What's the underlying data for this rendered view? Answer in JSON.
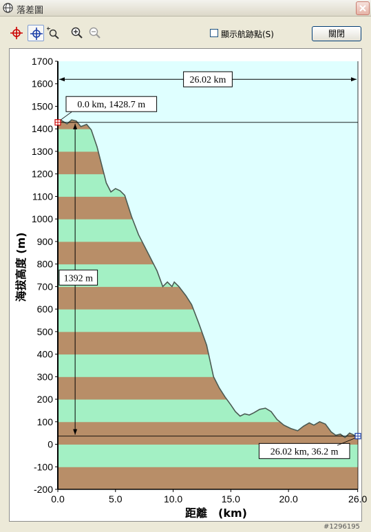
{
  "window": {
    "title": "落差圖",
    "close_icon": "close-icon",
    "app_icon": "globe-icon"
  },
  "toolbar": {
    "tools": [
      {
        "name": "crosshair-red",
        "icon": "crosshair-icon",
        "color": "#cc0000"
      },
      {
        "name": "pan",
        "icon": "move-crosshair-icon",
        "color": "#1c3fa8"
      },
      {
        "name": "zoom-box",
        "icon": "zoom-box-icon",
        "color": "#333333"
      },
      {
        "name": "zoom-in",
        "icon": "zoom-in-icon",
        "color": "#333333"
      },
      {
        "name": "zoom-out",
        "icon": "zoom-out-icon",
        "color": "#999999"
      }
    ],
    "waypoints_label": "顯示航跡點(S)",
    "waypoints_checked": false,
    "close_label": "關閉"
  },
  "chart_data": {
    "type": "area",
    "xlabel": "距離　(km)",
    "ylabel": "海拔高度 (m)",
    "xlim": [
      0,
      26.02
    ],
    "ylim": [
      -200,
      1700
    ],
    "x_ticks": [
      "0.0",
      "5.0",
      "10.0",
      "15.0",
      "20.0",
      "26.0"
    ],
    "x_tick_values": [
      0,
      5,
      10,
      15,
      20,
      26
    ],
    "y_ticks": [
      "1700",
      "1600",
      "1500",
      "1400",
      "1300",
      "1200",
      "1100",
      "1000",
      "900",
      "800",
      "700",
      "600",
      "500",
      "400",
      "300",
      "200",
      "100",
      "0",
      "-100",
      "-200"
    ],
    "y_tick_values": [
      1700,
      1600,
      1500,
      1400,
      1300,
      1200,
      1100,
      1000,
      900,
      800,
      700,
      600,
      500,
      400,
      300,
      200,
      100,
      0,
      -100,
      -200
    ],
    "band_colors": [
      "#b88e68",
      "#a3f0c4"
    ],
    "band_height": 100,
    "sky_color": "#dfffff",
    "line_color": "#4a5a52",
    "profile": [
      {
        "x": 0.0,
        "y": 1428.7
      },
      {
        "x": 0.3,
        "y": 1438
      },
      {
        "x": 0.8,
        "y": 1422
      },
      {
        "x": 1.2,
        "y": 1440
      },
      {
        "x": 1.6,
        "y": 1435
      },
      {
        "x": 2.0,
        "y": 1410
      },
      {
        "x": 2.5,
        "y": 1420
      },
      {
        "x": 2.9,
        "y": 1395
      },
      {
        "x": 3.4,
        "y": 1320
      },
      {
        "x": 3.8,
        "y": 1240
      },
      {
        "x": 4.2,
        "y": 1160
      },
      {
        "x": 4.6,
        "y": 1120
      },
      {
        "x": 5.0,
        "y": 1135
      },
      {
        "x": 5.4,
        "y": 1125
      },
      {
        "x": 5.8,
        "y": 1105
      },
      {
        "x": 6.4,
        "y": 1010
      },
      {
        "x": 7.0,
        "y": 930
      },
      {
        "x": 7.5,
        "y": 880
      },
      {
        "x": 8.0,
        "y": 830
      },
      {
        "x": 8.6,
        "y": 770
      },
      {
        "x": 9.1,
        "y": 700
      },
      {
        "x": 9.5,
        "y": 720
      },
      {
        "x": 9.9,
        "y": 700
      },
      {
        "x": 10.1,
        "y": 720
      },
      {
        "x": 10.5,
        "y": 700
      },
      {
        "x": 11.1,
        "y": 660
      },
      {
        "x": 11.6,
        "y": 620
      },
      {
        "x": 12.2,
        "y": 540
      },
      {
        "x": 12.9,
        "y": 440
      },
      {
        "x": 13.5,
        "y": 300
      },
      {
        "x": 14.0,
        "y": 250
      },
      {
        "x": 14.5,
        "y": 210
      },
      {
        "x": 15.0,
        "y": 175
      },
      {
        "x": 15.4,
        "y": 145
      },
      {
        "x": 15.8,
        "y": 125
      },
      {
        "x": 16.2,
        "y": 135
      },
      {
        "x": 16.6,
        "y": 130
      },
      {
        "x": 17.0,
        "y": 140
      },
      {
        "x": 17.5,
        "y": 155
      },
      {
        "x": 18.0,
        "y": 160
      },
      {
        "x": 18.5,
        "y": 145
      },
      {
        "x": 19.0,
        "y": 110
      },
      {
        "x": 19.6,
        "y": 85
      },
      {
        "x": 20.2,
        "y": 70
      },
      {
        "x": 20.8,
        "y": 60
      },
      {
        "x": 21.3,
        "y": 80
      },
      {
        "x": 21.8,
        "y": 95
      },
      {
        "x": 22.2,
        "y": 85
      },
      {
        "x": 22.7,
        "y": 100
      },
      {
        "x": 23.2,
        "y": 90
      },
      {
        "x": 23.7,
        "y": 55
      },
      {
        "x": 24.1,
        "y": 40
      },
      {
        "x": 24.5,
        "y": 45
      },
      {
        "x": 24.9,
        "y": 30
      },
      {
        "x": 25.3,
        "y": 50
      },
      {
        "x": 25.7,
        "y": 40
      },
      {
        "x": 26.02,
        "y": 36.2
      }
    ],
    "start_point": {
      "x": 0.0,
      "y": 1428.7,
      "label": "0.0 km, 1428.7 m"
    },
    "end_point": {
      "x": 26.02,
      "y": 36.2,
      "label": "26.02 km, 36.2 m"
    },
    "distance_label": "26.02 km",
    "elevation_diff_label": "1392 m"
  },
  "footer": {
    "mark": "#1296195"
  }
}
